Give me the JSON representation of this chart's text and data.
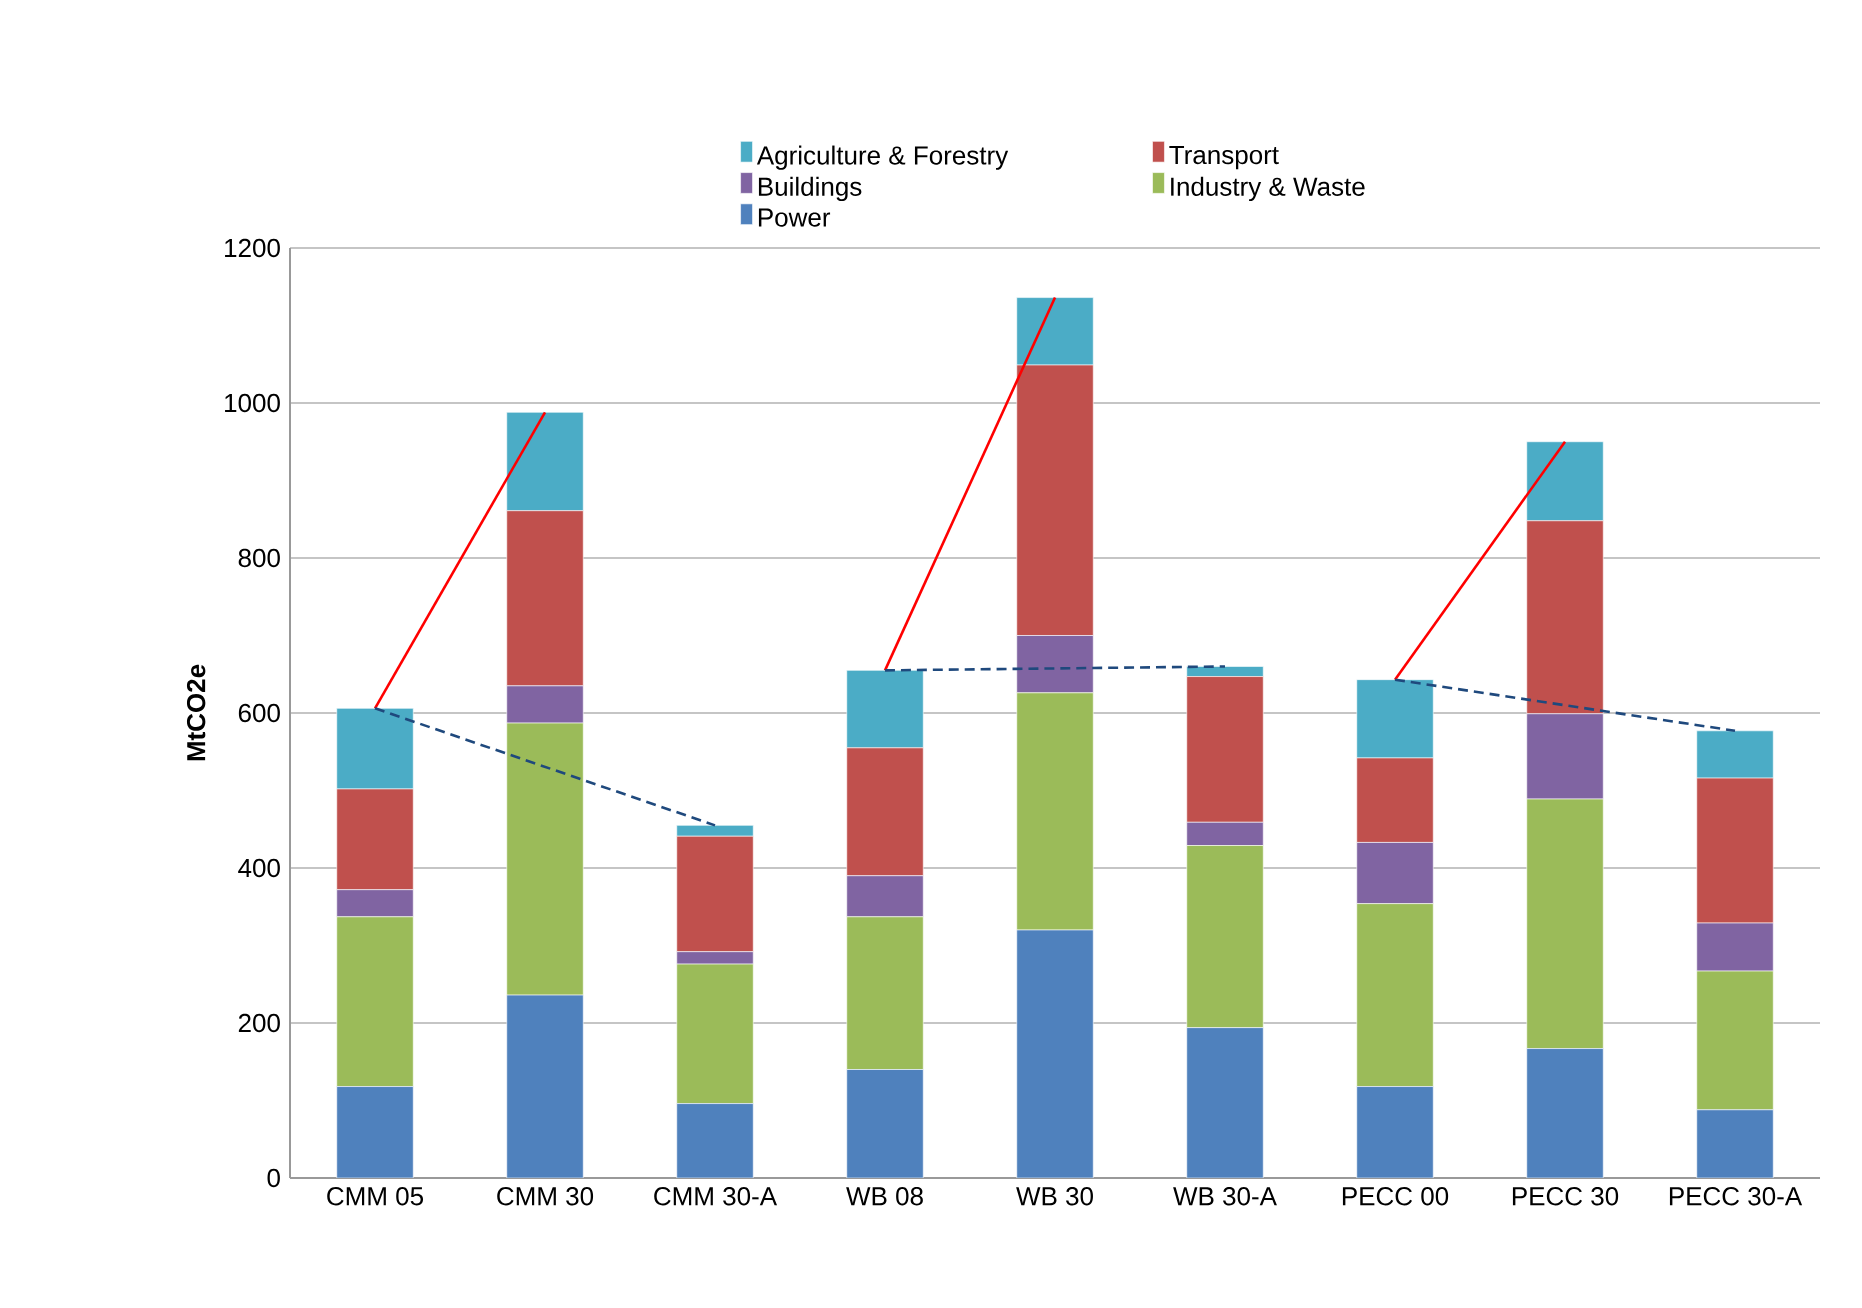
{
  "chart_data": {
    "type": "bar",
    "stacked": true,
    "ylabel": "MtCO2e",
    "categories": [
      "CMM 05",
      "CMM 30",
      "CMM 30-A",
      "WB 08",
      "WB 30",
      "WB 30-A",
      "PECC 00",
      "PECC 30",
      "PECC 30-A"
    ],
    "series": [
      {
        "name": "Power",
        "color": "#4f81bd",
        "values": [
          118,
          236,
          96,
          140,
          320,
          194,
          118,
          167,
          88
        ]
      },
      {
        "name": "Industry & Waste",
        "color": "#9bbb59",
        "values": [
          219,
          351,
          180,
          197,
          306,
          235,
          236,
          322,
          179
        ]
      },
      {
        "name": "Buildings",
        "color": "#8064a2",
        "values": [
          35,
          48,
          16,
          53,
          74,
          30,
          79,
          110,
          62
        ]
      },
      {
        "name": "Transport",
        "color": "#c0504d",
        "values": [
          130,
          226,
          149,
          165,
          349,
          188,
          109,
          249,
          187
        ]
      },
      {
        "name": "Agriculture & Forestry",
        "color": "#4bacc6",
        "values": [
          104,
          127,
          14,
          100,
          87,
          13,
          101,
          102,
          61
        ]
      },
      {
        "type": "line",
        "color": "#ff0000",
        "line_style": "solid",
        "values": [
          606,
          988,
          null,
          null,
          null,
          null,
          null,
          null,
          null
        ]
      },
      {
        "type": "line",
        "color": "#1f497d",
        "line_style": "dashed",
        "values": [
          606,
          null,
          455,
          null,
          null,
          null,
          null,
          null,
          null
        ]
      },
      {
        "type": "line",
        "color": "#ff0000",
        "line_style": "solid",
        "values": [
          null,
          null,
          null,
          655,
          1136,
          null,
          null,
          null,
          null
        ]
      },
      {
        "type": "line",
        "color": "#1f497d",
        "line_style": "dashed",
        "values": [
          null,
          null,
          null,
          655,
          null,
          660,
          null,
          null,
          null
        ]
      },
      {
        "type": "line",
        "color": "#ff0000",
        "line_style": "solid",
        "values": [
          null,
          null,
          null,
          null,
          null,
          null,
          643,
          950,
          null
        ]
      },
      {
        "type": "line",
        "color": "#1f497d",
        "line_style": "dashed",
        "values": [
          null,
          null,
          null,
          null,
          null,
          null,
          643,
          null,
          577
        ]
      }
    ],
    "ylim": [
      0,
      1200
    ],
    "yticks": [
      0,
      200,
      400,
      600,
      800,
      1000,
      1200
    ],
    "grid": "y",
    "legend": "top"
  }
}
